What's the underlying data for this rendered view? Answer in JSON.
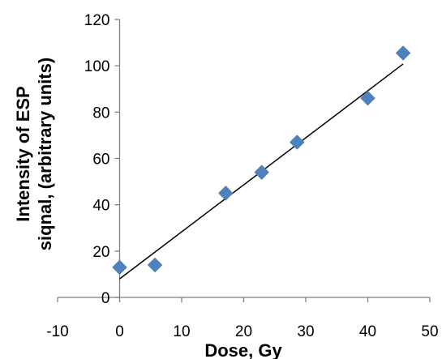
{
  "chart_data": {
    "type": "scatter",
    "title": "",
    "xlabel": "Dose, Gy",
    "ylabel_line1": "Intensity of ESP",
    "ylabel_line2": "siqnal, (arbitrary units)",
    "xlim": [
      -10,
      50
    ],
    "ylim": [
      0,
      120
    ],
    "x_ticks": [
      -10,
      0,
      10,
      20,
      30,
      40,
      50
    ],
    "y_ticks": [
      0,
      20,
      40,
      60,
      80,
      100,
      120
    ],
    "grid": false,
    "legend": "none",
    "marker": "diamond",
    "series": [
      {
        "x": [
          0,
          5.7,
          17.1,
          22.9,
          28.6,
          40,
          45.7
        ],
        "y": [
          13,
          14,
          45,
          54,
          67,
          86,
          105.5
        ]
      }
    ],
    "trendline": {
      "type": "linear",
      "slope": 2.03,
      "intercept": 8,
      "x_range": [
        0,
        45.7
      ]
    },
    "colors": {
      "marker": "#4f81bd",
      "axis": "#7f7f7f",
      "trendline": "#000000"
    }
  }
}
